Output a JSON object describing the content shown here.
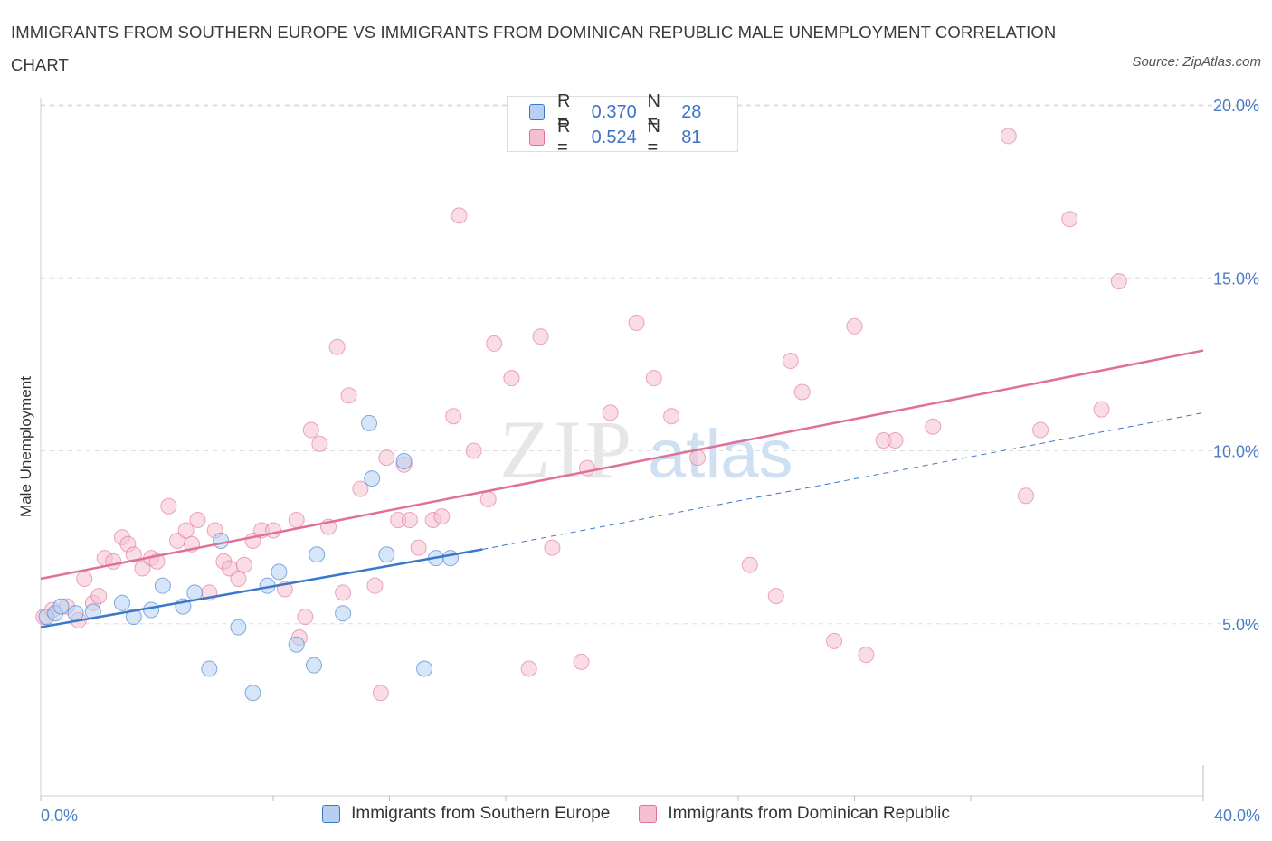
{
  "title": "IMMIGRANTS FROM SOUTHERN EUROPE VS IMMIGRANTS FROM DOMINICAN REPUBLIC MALE UNEMPLOYMENT CORRELATION CHART",
  "source": "Source: ZipAtlas.com",
  "watermark": {
    "zip": "ZIP",
    "atlas": "atlas"
  },
  "colors": {
    "blue": "#3a78c9",
    "blue_fill": "#b7cff2",
    "pink": "#e07098",
    "pink_fill": "#f5bfd0",
    "tick_label": "#4a7cc7",
    "grid": "#dddddd"
  },
  "legend_top": [
    {
      "r_label": "R = ",
      "r_value": "0.370",
      "n_label": "N = ",
      "n_value": "28"
    },
    {
      "r_label": "R = ",
      "r_value": "0.524",
      "n_label": "N = ",
      "n_value": "81"
    }
  ],
  "chart_data": {
    "type": "scatter",
    "title": "IMMIGRANTS FROM SOUTHERN EUROPE VS IMMIGRANTS FROM DOMINICAN REPUBLIC MALE UNEMPLOYMENT CORRELATION CHART",
    "xlabel": "",
    "ylabel": "Male Unemployment",
    "xlim": [
      0,
      40
    ],
    "ylim": [
      0,
      20
    ],
    "x_tick_labels": [
      "0.0%",
      "40.0%"
    ],
    "y_ticks": [
      5,
      10,
      15,
      20
    ],
    "y_tick_labels": [
      "5.0%",
      "10.0%",
      "15.0%",
      "20.0%"
    ],
    "grid": true,
    "legend_position": "bottom",
    "series": [
      {
        "name": "Immigrants from Southern Europe",
        "color": "#3a78c9",
        "r": 0.37,
        "n": 28,
        "trend": {
          "x0": 0,
          "y0": 4.9,
          "x1": 15.2,
          "y1": 7.15,
          "dash_to_x": 40,
          "dash_to_y": 11.1
        },
        "points": [
          [
            0.2,
            5.2
          ],
          [
            0.5,
            5.3
          ],
          [
            0.7,
            5.5
          ],
          [
            1.2,
            5.3
          ],
          [
            1.8,
            5.35
          ],
          [
            2.8,
            5.6
          ],
          [
            3.2,
            5.2
          ],
          [
            3.8,
            5.4
          ],
          [
            4.2,
            6.1
          ],
          [
            4.9,
            5.5
          ],
          [
            5.3,
            5.9
          ],
          [
            5.8,
            3.7
          ],
          [
            6.2,
            7.4
          ],
          [
            6.8,
            4.9
          ],
          [
            7.3,
            3.0
          ],
          [
            7.8,
            6.1
          ],
          [
            8.2,
            6.5
          ],
          [
            8.8,
            4.4
          ],
          [
            9.4,
            3.8
          ],
          [
            9.5,
            7.0
          ],
          [
            10.4,
            5.3
          ],
          [
            11.3,
            10.8
          ],
          [
            11.4,
            9.2
          ],
          [
            11.9,
            7.0
          ],
          [
            12.5,
            9.7
          ],
          [
            13.2,
            3.7
          ],
          [
            13.6,
            6.9
          ],
          [
            14.1,
            6.9
          ]
        ]
      },
      {
        "name": "Immigrants from Dominican Republic",
        "color": "#e07098",
        "r": 0.524,
        "n": 81,
        "trend": {
          "x0": 0,
          "y0": 6.3,
          "x1": 40,
          "y1": 12.9
        },
        "points": [
          [
            0.1,
            5.2
          ],
          [
            0.4,
            5.4
          ],
          [
            0.9,
            5.5
          ],
          [
            1.3,
            5.1
          ],
          [
            1.5,
            6.3
          ],
          [
            1.8,
            5.6
          ],
          [
            2.0,
            5.8
          ],
          [
            2.2,
            6.9
          ],
          [
            2.5,
            6.8
          ],
          [
            2.8,
            7.5
          ],
          [
            3.0,
            7.3
          ],
          [
            3.2,
            7.0
          ],
          [
            3.5,
            6.6
          ],
          [
            3.8,
            6.9
          ],
          [
            4.0,
            6.8
          ],
          [
            4.4,
            8.4
          ],
          [
            4.7,
            7.4
          ],
          [
            5.0,
            7.7
          ],
          [
            5.2,
            7.3
          ],
          [
            5.4,
            8.0
          ],
          [
            5.8,
            5.9
          ],
          [
            6.0,
            7.7
          ],
          [
            6.3,
            6.8
          ],
          [
            6.5,
            6.6
          ],
          [
            6.8,
            6.3
          ],
          [
            7.0,
            6.7
          ],
          [
            7.3,
            7.4
          ],
          [
            7.6,
            7.7
          ],
          [
            8.0,
            7.7
          ],
          [
            8.4,
            6.0
          ],
          [
            8.9,
            4.6
          ],
          [
            8.8,
            8.0
          ],
          [
            9.1,
            5.2
          ],
          [
            9.3,
            10.6
          ],
          [
            9.6,
            10.2
          ],
          [
            9.9,
            7.8
          ],
          [
            10.2,
            13.0
          ],
          [
            10.4,
            5.9
          ],
          [
            10.6,
            11.6
          ],
          [
            11.0,
            8.9
          ],
          [
            11.5,
            6.1
          ],
          [
            11.7,
            3.0
          ],
          [
            11.9,
            9.8
          ],
          [
            12.3,
            8.0
          ],
          [
            12.5,
            9.6
          ],
          [
            12.7,
            8.0
          ],
          [
            13.0,
            7.2
          ],
          [
            13.5,
            8.0
          ],
          [
            13.8,
            8.1
          ],
          [
            14.2,
            11.0
          ],
          [
            14.4,
            16.8
          ],
          [
            14.9,
            10.0
          ],
          [
            15.4,
            8.6
          ],
          [
            15.6,
            13.1
          ],
          [
            16.2,
            12.1
          ],
          [
            16.8,
            3.7
          ],
          [
            17.2,
            13.3
          ],
          [
            17.6,
            7.2
          ],
          [
            18.6,
            3.9
          ],
          [
            18.8,
            9.5
          ],
          [
            19.6,
            11.1
          ],
          [
            20.5,
            13.7
          ],
          [
            21.1,
            12.1
          ],
          [
            21.7,
            11.0
          ],
          [
            22.6,
            9.8
          ],
          [
            24.4,
            6.7
          ],
          [
            25.3,
            5.8
          ],
          [
            25.8,
            12.6
          ],
          [
            26.2,
            11.7
          ],
          [
            27.3,
            4.5
          ],
          [
            28.0,
            13.6
          ],
          [
            28.4,
            4.1
          ],
          [
            29.0,
            10.3
          ],
          [
            29.4,
            10.3
          ],
          [
            30.7,
            10.7
          ],
          [
            33.3,
            19.1
          ],
          [
            33.9,
            8.7
          ],
          [
            34.4,
            10.6
          ],
          [
            35.4,
            16.7
          ],
          [
            36.5,
            11.2
          ],
          [
            37.1,
            14.9
          ]
        ]
      }
    ]
  }
}
